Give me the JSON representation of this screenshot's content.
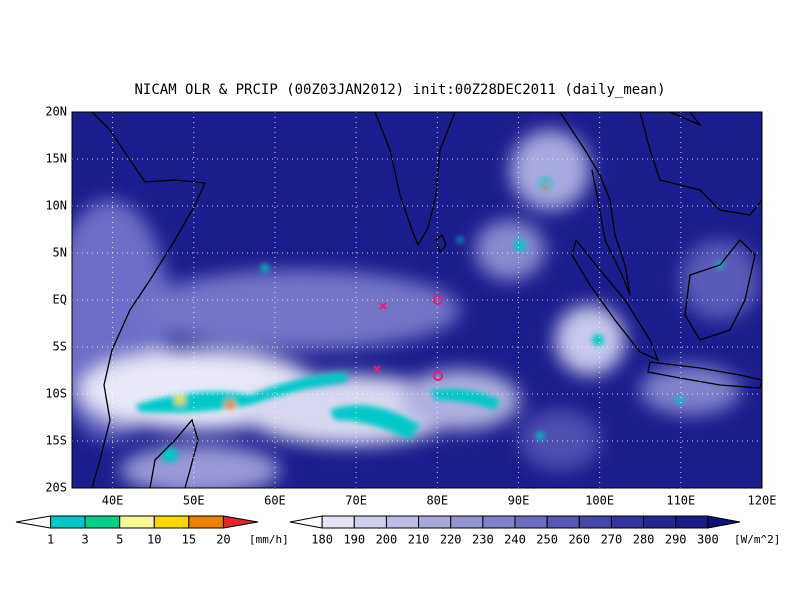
{
  "map": {
    "title": "NICAM OLR & PRCIP (00Z03JAN2012) init:00Z28DEC2011 (daily_mean)",
    "lat_labels": [
      "20N",
      "15N",
      "10N",
      "5N",
      "EQ",
      "5S",
      "10S",
      "15S",
      "20S"
    ],
    "lon_labels": [
      "40E",
      "50E",
      "60E",
      "70E",
      "80E",
      "90E",
      "100E",
      "110E",
      "120E"
    ],
    "precip_levels": [
      1,
      3,
      5,
      10,
      15,
      20
    ],
    "precip_unit": "[mm/h]",
    "olr_levels": [
      180,
      190,
      200,
      210,
      220,
      230,
      240,
      250,
      260,
      270,
      280,
      290,
      300
    ],
    "olr_unit": "[W/m^2]"
  }
}
